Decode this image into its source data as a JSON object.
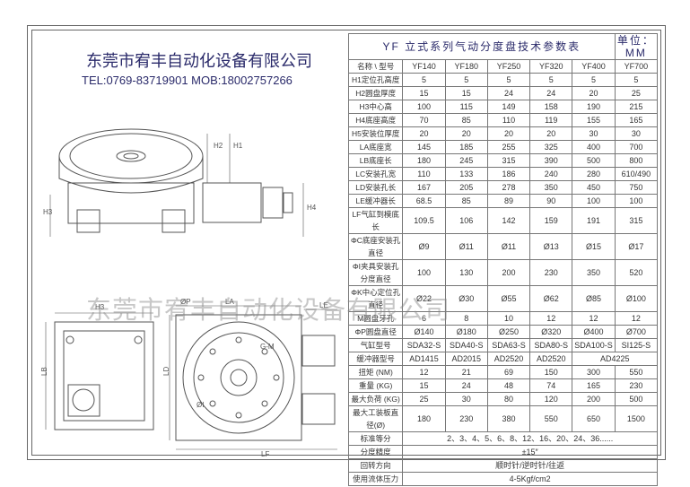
{
  "company_name": "东莞市宥丰自动化设备有限公司",
  "contact_line": "TEL:0769-83719901 MOB:18002757266",
  "watermark": "东莞市宥丰自动化设备有限公司",
  "table": {
    "title": "YF 立式系列气动分度盘技术参数表",
    "unit": "单位：MM",
    "header_label": "名称  \\  型号",
    "models": [
      "YF140",
      "YF180",
      "YF250",
      "YF320",
      "YF400",
      "YF700"
    ],
    "rows": [
      {
        "label": "H1定位孔高度",
        "v": [
          "5",
          "5",
          "5",
          "5",
          "5",
          "5"
        ]
      },
      {
        "label": "H2圆盘厚度",
        "v": [
          "15",
          "15",
          "24",
          "24",
          "20",
          "25"
        ]
      },
      {
        "label": "H3中心高",
        "v": [
          "100",
          "115",
          "149",
          "158",
          "190",
          "215"
        ]
      },
      {
        "label": "H4底座高度",
        "v": [
          "70",
          "85",
          "110",
          "119",
          "155",
          "165"
        ]
      },
      {
        "label": "H5安装位厚度",
        "v": [
          "20",
          "20",
          "20",
          "20",
          "30",
          "30"
        ]
      },
      {
        "label": "LA底座宽",
        "v": [
          "145",
          "185",
          "255",
          "325",
          "400",
          "700"
        ]
      },
      {
        "label": "LB底座长",
        "v": [
          "180",
          "245",
          "315",
          "390",
          "500",
          "800"
        ]
      },
      {
        "label": "LC安装孔宽",
        "v": [
          "110",
          "133",
          "186",
          "240",
          "280",
          "610/490"
        ]
      },
      {
        "label": "LD安装孔长",
        "v": [
          "167",
          "205",
          "278",
          "350",
          "450",
          "750"
        ]
      },
      {
        "label": "LE缓冲器长",
        "v": [
          "68.5",
          "85",
          "89",
          "90",
          "100",
          "100"
        ]
      },
      {
        "label": "LF气缸到模底长",
        "v": [
          "109.5",
          "106",
          "142",
          "159",
          "191",
          "315"
        ]
      },
      {
        "label": "ΦC底座安装孔直径",
        "v": [
          "Ø9",
          "Ø11",
          "Ø11",
          "Ø13",
          "Ø15",
          "Ø17"
        ]
      },
      {
        "label": "ΦI夹具安装孔分度直径",
        "v": [
          "100",
          "130",
          "200",
          "230",
          "350",
          "520"
        ]
      },
      {
        "label": "ΦK中心定位孔直径",
        "v": [
          "Ø22",
          "Ø30",
          "Ø55",
          "Ø62",
          "Ø85",
          "Ø100"
        ]
      },
      {
        "label": "M圆盘牙孔",
        "v": [
          "6",
          "8",
          "10",
          "12",
          "12",
          "12"
        ]
      },
      {
        "label": "ΦP圆盘直径",
        "v": [
          "Ø140",
          "Ø180",
          "Ø250",
          "Ø320",
          "Ø400",
          "Ø700"
        ]
      },
      {
        "label": "气缸型号",
        "v": [
          "SDA32-S",
          "SDA40-S",
          "SDA63-S",
          "SDA80-S",
          "SDA100-S",
          "SI125-S"
        ]
      },
      {
        "label": "缓冲器型号",
        "v": [
          "AD1415",
          "AD2015",
          "AD2520",
          "AD2520",
          "",
          "AD4225"
        ],
        "merge": [
          4
        ]
      },
      {
        "label": "扭矩 (NM)",
        "v": [
          "12",
          "21",
          "69",
          "150",
          "300",
          "550"
        ]
      },
      {
        "label": "重量 (KG)",
        "v": [
          "15",
          "24",
          "48",
          "74",
          "165",
          "230"
        ]
      },
      {
        "label": "最大负荷 (KG)",
        "v": [
          "25",
          "30",
          "80",
          "120",
          "200",
          "500"
        ]
      },
      {
        "label": "最大工装板直径(Ø)",
        "v": [
          "180",
          "230",
          "380",
          "550",
          "650",
          "1500"
        ]
      },
      {
        "label": "标准等分",
        "full": "2、3、4、5、6、8、12、16、20、24、36......"
      },
      {
        "label": "分度精度",
        "full": "±15″"
      },
      {
        "label": "回转方向",
        "full": "顺时针/逆时针/往返"
      },
      {
        "label": "使用流体压力",
        "full": "4-5Kgf/cm2"
      }
    ]
  },
  "dim_labels": [
    "H1",
    "H2",
    "H3",
    "H4",
    "ØP",
    "LA",
    "LB",
    "LC",
    "LD",
    "LE",
    "LF",
    "ØI",
    "G-M"
  ]
}
